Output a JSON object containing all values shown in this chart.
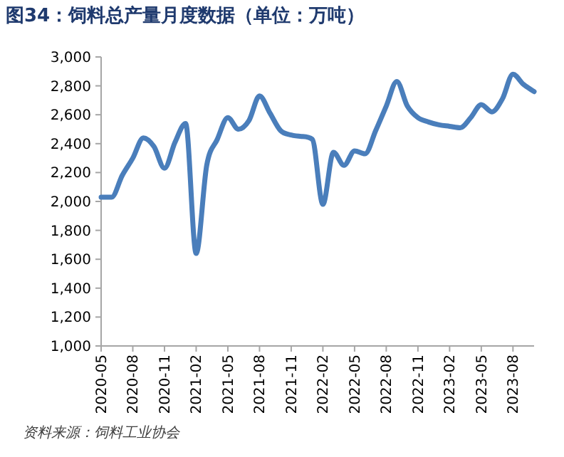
{
  "chart_data": {
    "type": "line",
    "title": "图34：饲料总产量月度数据（单位：万吨）",
    "x": [
      "2020-05",
      "2020-06",
      "2020-07",
      "2020-08",
      "2020-09",
      "2020-10",
      "2020-11",
      "2020-12",
      "2021-01",
      "2021-02",
      "2021-03",
      "2021-04",
      "2021-05",
      "2021-06",
      "2021-07",
      "2021-08",
      "2021-09",
      "2021-10",
      "2021-11",
      "2021-12",
      "2022-01",
      "2022-02",
      "2022-03",
      "2022-04",
      "2022-05",
      "2022-06",
      "2022-07",
      "2022-08",
      "2022-09",
      "2022-10",
      "2022-11",
      "2022-12",
      "2023-01",
      "2023-02",
      "2023-03",
      "2023-04",
      "2023-05",
      "2023-06",
      "2023-07",
      "2023-08",
      "2023-09",
      "2023-10"
    ],
    "series": [
      {
        "color": "#4a7ebb",
        "values": [
          2030,
          2030,
          2180,
          2300,
          2440,
          2380,
          2230,
          2410,
          2540,
          1640,
          2250,
          2430,
          2580,
          2500,
          2560,
          2730,
          2610,
          2490,
          2460,
          2450,
          2430,
          1980,
          2340,
          2250,
          2350,
          2330,
          2490,
          2660,
          2830,
          2660,
          2580,
          2550,
          2530,
          2520,
          2510,
          2580,
          2670,
          2620,
          2710,
          2880,
          2810,
          2760
        ]
      }
    ],
    "xlim": [
      "2020-05",
      "2023-10"
    ],
    "xticks": [
      "2020-05",
      "2020-08",
      "2020-11",
      "2021-02",
      "2021-05",
      "2021-08",
      "2021-11",
      "2022-02",
      "2022-05",
      "2022-08",
      "2022-11",
      "2023-02",
      "2023-05",
      "2023-08"
    ],
    "ylim": [
      1000,
      3000
    ],
    "yticks": [
      {
        "value": 1000,
        "label": "1,000"
      },
      {
        "value": 1200,
        "label": "1,200"
      },
      {
        "value": 1400,
        "label": "1,400"
      },
      {
        "value": 1600,
        "label": "1,600"
      },
      {
        "value": 1800,
        "label": "1,800"
      },
      {
        "value": 2000,
        "label": "2,000"
      },
      {
        "value": 2200,
        "label": "2,200"
      },
      {
        "value": 2400,
        "label": "2,400"
      },
      {
        "value": 2600,
        "label": "2,600"
      },
      {
        "value": 2800,
        "label": "2,800"
      },
      {
        "value": 3000,
        "label": "3,000"
      }
    ],
    "grid": false,
    "annotations": [
      "资料来源：饲料工业协会"
    ]
  }
}
